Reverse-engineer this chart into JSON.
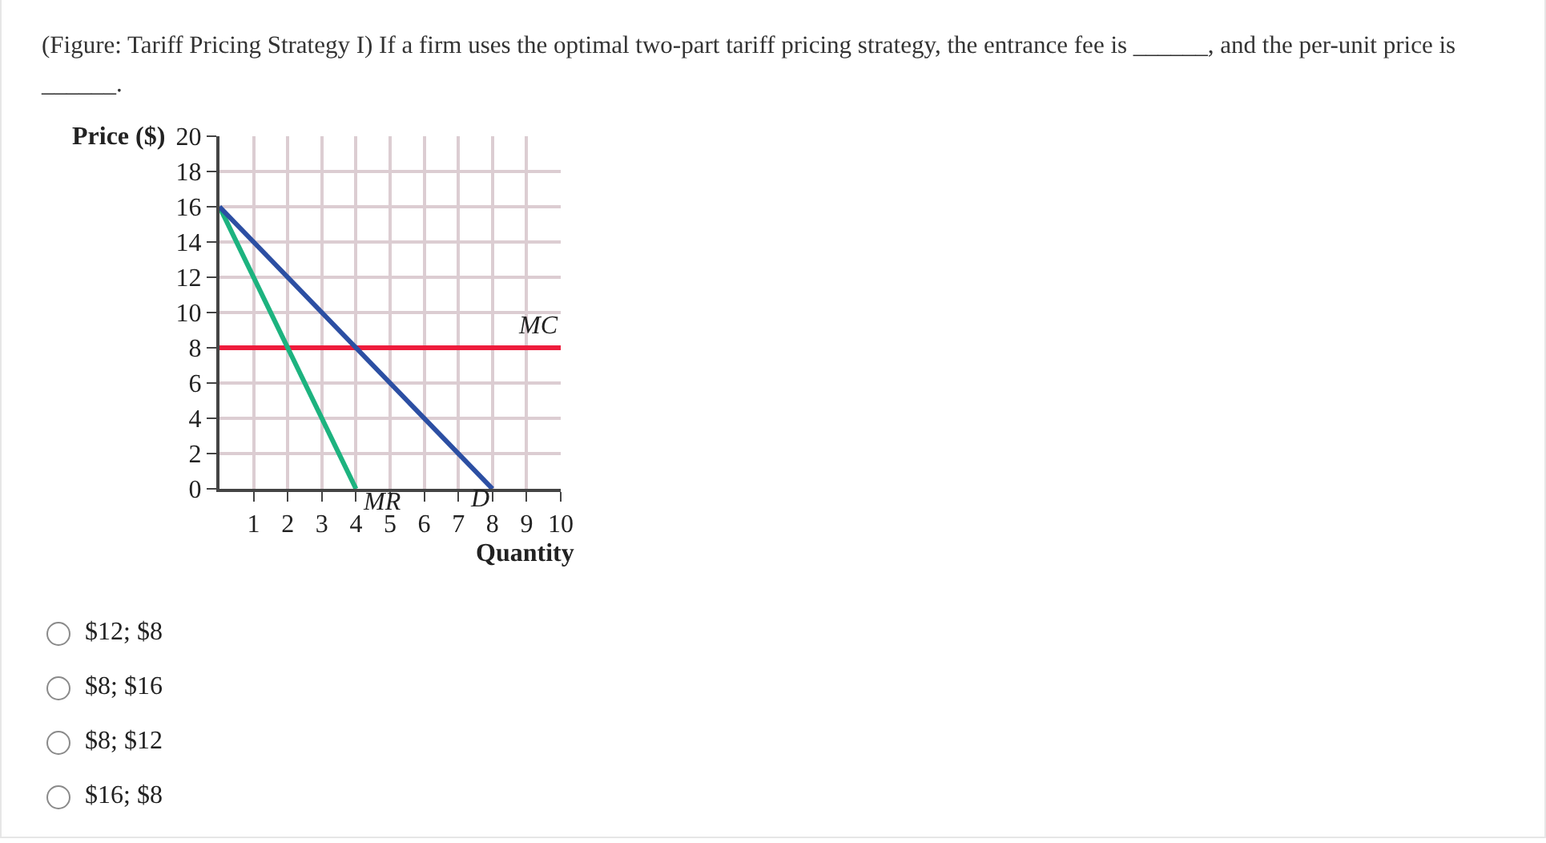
{
  "chart_data": {
    "type": "line",
    "title": "(Figure: Tariff Pricing Strategy I) If a firm uses the optimal two-part tariff pricing strategy, the entrance fee is ______, and the per-unit price is ______.",
    "xlabel": "Quantity",
    "ylabel": "Price ($)",
    "series": [
      {
        "name": "MC",
        "color": "#ee1c3c",
        "x": [
          0,
          10
        ],
        "values": [
          8,
          8
        ]
      },
      {
        "name": "MR",
        "color": "#1db37f",
        "x": [
          0,
          4
        ],
        "values": [
          16,
          0
        ]
      },
      {
        "name": "D",
        "color": "#2c4fa3",
        "x": [
          0,
          8
        ],
        "values": [
          16,
          0
        ]
      }
    ],
    "xlim": [
      0,
      10
    ],
    "xticks": [
      1,
      2,
      3,
      4,
      5,
      6,
      7,
      8,
      9,
      10
    ],
    "ylim": [
      0,
      20
    ],
    "yticks": [
      0,
      2,
      4,
      6,
      8,
      10,
      12,
      14,
      16,
      18,
      20
    ],
    "grid": true,
    "legend": false,
    "marker": "none",
    "line_style": "solid",
    "annotations": [
      "$12; $8",
      "$8; $16",
      "$8; $12",
      "$16; $8"
    ]
  }
}
